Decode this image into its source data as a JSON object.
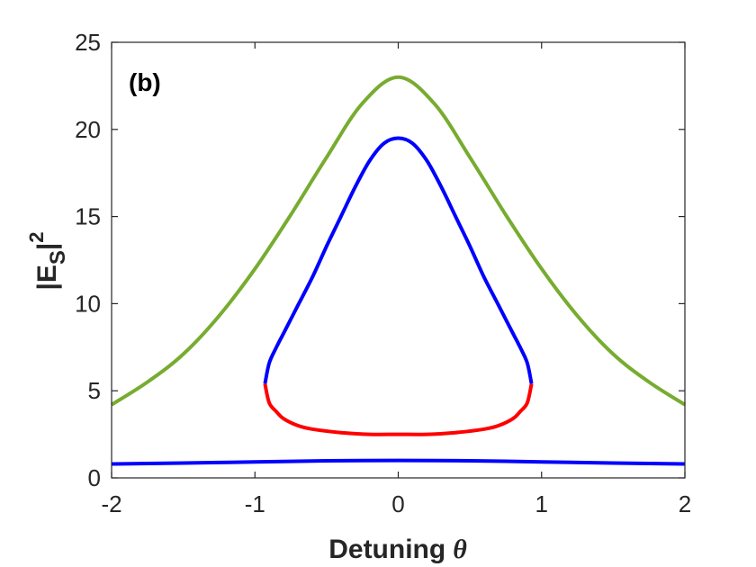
{
  "chart_data": {
    "type": "line",
    "panel_label": "(b)",
    "xlabel": "Detuning",
    "xlabel_symbol": "θ",
    "ylabel": "|E",
    "ylabel_sub": "S",
    "ylabel_tail": "|",
    "ylabel_sup": "2",
    "xlim": [
      -2,
      2
    ],
    "ylim": [
      0,
      25
    ],
    "x_ticks": [
      -2,
      -1,
      0,
      1,
      2
    ],
    "x_tick_labels": [
      "-2",
      "-1",
      "0",
      "1",
      "2"
    ],
    "y_ticks": [
      0,
      5,
      10,
      15,
      20,
      25
    ],
    "y_tick_labels": [
      "0",
      "5",
      "10",
      "15",
      "20",
      "25"
    ],
    "grid": false,
    "series": [
      {
        "color": "#77ac30",
        "x": [
          -2.0,
          -1.75,
          -1.5,
          -1.25,
          -1.0,
          -0.75,
          -0.5,
          -0.25,
          0.0,
          0.25,
          0.5,
          0.75,
          1.0,
          1.25,
          1.5,
          1.75,
          2.0
        ],
        "y": [
          4.2,
          5.5,
          7.1,
          9.3,
          12.0,
          15.1,
          18.4,
          21.5,
          23.0,
          21.5,
          18.4,
          15.1,
          12.0,
          9.3,
          7.1,
          5.5,
          4.2
        ]
      },
      {
        "color": "#0000ff",
        "x": [
          -0.93,
          -0.9,
          -0.85,
          -0.8,
          -0.7,
          -0.6,
          -0.5,
          -0.4,
          -0.3,
          -0.2,
          -0.1,
          0.0,
          0.1,
          0.2,
          0.3,
          0.4,
          0.5,
          0.6,
          0.7,
          0.8,
          0.85,
          0.9,
          0.93
        ],
        "y": [
          5.4,
          6.6,
          7.5,
          8.3,
          9.9,
          11.5,
          13.3,
          15.0,
          16.7,
          18.2,
          19.2,
          19.5,
          19.2,
          18.2,
          16.7,
          15.0,
          13.3,
          11.5,
          9.9,
          8.3,
          7.5,
          6.6,
          5.4
        ]
      },
      {
        "color": "#ff0000",
        "x": [
          -0.93,
          -0.9,
          -0.85,
          -0.8,
          -0.7,
          -0.6,
          -0.4,
          -0.2,
          0.0,
          0.2,
          0.4,
          0.6,
          0.7,
          0.8,
          0.85,
          0.9,
          0.93
        ],
        "y": [
          5.4,
          4.3,
          3.8,
          3.4,
          3.0,
          2.8,
          2.6,
          2.5,
          2.5,
          2.5,
          2.6,
          2.8,
          3.0,
          3.4,
          3.8,
          4.3,
          5.4
        ]
      },
      {
        "color": "#0000ff",
        "x": [
          -2.0,
          -1.5,
          -1.0,
          -0.5,
          0.0,
          0.5,
          1.0,
          1.5,
          2.0
        ],
        "y": [
          0.8,
          0.85,
          0.92,
          0.98,
          1.0,
          0.98,
          0.92,
          0.85,
          0.8
        ]
      }
    ]
  }
}
